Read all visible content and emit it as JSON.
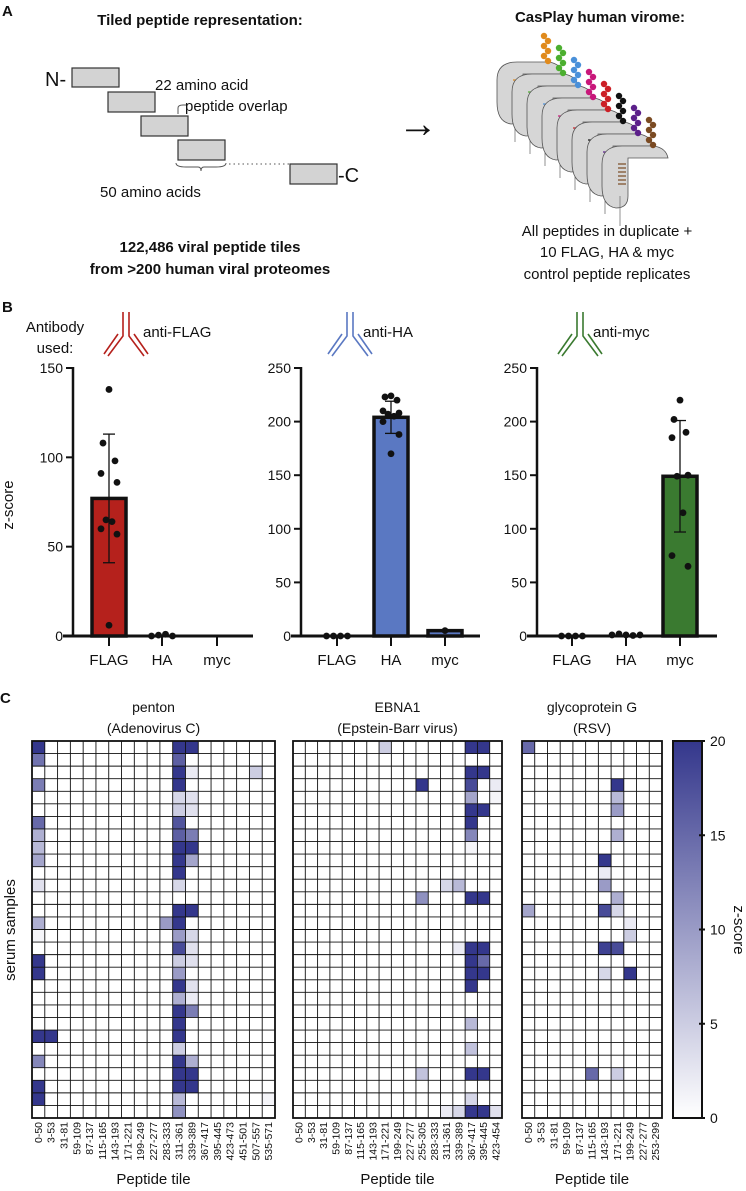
{
  "panel_a": {
    "letter": "A",
    "left_title": "Tiled peptide representation:",
    "n_term": "N-",
    "c_term": "-C",
    "overlap_line1": "22 amino acid",
    "overlap_line2": "peptide overlap",
    "length_label": "50 amino acids",
    "summary_line1": "122,486 viral peptide tiles",
    "summary_line2": "from >200 human viral proteomes",
    "right_title": "CasPlay human virome:",
    "right_line1": "All peptides in duplicate +",
    "right_line2": "10 FLAG, HA & myc",
    "right_line3": "control peptide replicates",
    "arrow": "→",
    "bead_colors": [
      "#e08a1c",
      "#4caf2f",
      "#4a90d9",
      "#c8177a",
      "#cc1f26",
      "#111111",
      "#5b1f8a",
      "#7a4a22"
    ]
  },
  "panel_b": {
    "letter": "B",
    "antibody_label_line1": "Antibody",
    "antibody_label_line2": "used:",
    "ylabel": "z-score"
  },
  "panel_c": {
    "letter": "C",
    "ylabel": "serum samples",
    "xlabel": "Peptide tile",
    "colorbar_label": "z-score"
  },
  "chart_data": [
    {
      "type": "bar",
      "title": "anti-FLAG",
      "color": "#b5211c",
      "categories": [
        "FLAG",
        "HA",
        "myc"
      ],
      "ylabel": "z-score",
      "ylim": [
        0,
        150
      ],
      "yticks": [
        0,
        50,
        100,
        150
      ],
      "means": [
        77,
        0.5,
        null
      ],
      "sd": [
        [
          41,
          113
        ],
        null,
        null
      ],
      "points": [
        [
          138,
          108,
          98,
          91,
          86,
          65,
          64,
          60,
          57,
          6
        ],
        [
          0,
          0.5,
          1,
          0
        ],
        []
      ]
    },
    {
      "type": "bar",
      "title": "anti-HA",
      "color": "#5a78c2",
      "categories": [
        "FLAG",
        "HA",
        "myc"
      ],
      "ylabel": "z-score",
      "ylim": [
        0,
        250
      ],
      "yticks": [
        0,
        50,
        100,
        150,
        200,
        250
      ],
      "means": [
        0.3,
        204,
        5
      ],
      "sd": [
        null,
        [
          189,
          219
        ],
        null
      ],
      "points": [
        [
          0,
          0,
          0,
          0
        ],
        [
          224,
          223,
          220,
          210,
          208,
          207,
          205,
          200,
          188,
          170
        ],
        [
          5
        ]
      ]
    },
    {
      "type": "bar",
      "title": "anti-myc",
      "color": "#3a7a30",
      "categories": [
        "FLAG",
        "HA",
        "myc"
      ],
      "ylabel": "z-score",
      "ylim": [
        0,
        250
      ],
      "yticks": [
        0,
        50,
        100,
        150,
        200,
        250
      ],
      "means": [
        0.3,
        1,
        149
      ],
      "sd": [
        null,
        null,
        [
          97,
          201
        ]
      ],
      "points": [
        [
          0,
          0,
          0,
          0
        ],
        [
          1,
          2,
          1,
          0.5,
          1
        ],
        [
          220,
          202,
          190,
          185,
          150,
          149,
          115,
          75,
          65
        ]
      ]
    },
    {
      "type": "heatmap",
      "title_line1": "penton",
      "title_line2": "(Adenovirus C)",
      "xlabel": "Peptide tile",
      "ylabel": "serum samples",
      "n_samples": 30,
      "tiles": [
        "0-50",
        "3-53",
        "31-81",
        "59-109",
        "87-137",
        "115-165",
        "143-193",
        "171-221",
        "199-249",
        "227-277",
        "283-333",
        "311-361",
        "339-389",
        "367-417",
        "395-445",
        "423-473",
        "451-501",
        "507-557",
        "535-571"
      ],
      "nonzero_cells_sample_tile_z": [
        [
          0,
          0,
          20
        ],
        [
          0,
          11,
          20
        ],
        [
          0,
          12,
          20
        ],
        [
          1,
          0,
          14
        ],
        [
          1,
          11,
          16
        ],
        [
          2,
          11,
          20
        ],
        [
          2,
          12,
          2
        ],
        [
          2,
          17,
          5
        ],
        [
          3,
          0,
          13
        ],
        [
          3,
          11,
          20
        ],
        [
          4,
          11,
          4
        ],
        [
          4,
          12,
          3
        ],
        [
          5,
          11,
          5
        ],
        [
          5,
          12,
          3
        ],
        [
          6,
          0,
          15
        ],
        [
          6,
          11,
          17
        ],
        [
          7,
          0,
          8
        ],
        [
          7,
          11,
          16
        ],
        [
          7,
          12,
          13
        ],
        [
          8,
          0,
          7
        ],
        [
          8,
          11,
          20
        ],
        [
          8,
          12,
          20
        ],
        [
          9,
          0,
          9
        ],
        [
          9,
          11,
          20
        ],
        [
          9,
          12,
          9
        ],
        [
          10,
          11,
          20
        ],
        [
          11,
          0,
          3
        ],
        [
          11,
          11,
          4
        ],
        [
          13,
          11,
          20
        ],
        [
          13,
          12,
          20
        ],
        [
          14,
          0,
          8
        ],
        [
          14,
          10,
          10
        ],
        [
          14,
          11,
          20
        ],
        [
          15,
          0,
          1
        ],
        [
          15,
          11,
          10
        ],
        [
          15,
          12,
          4
        ],
        [
          16,
          11,
          18
        ],
        [
          16,
          12,
          3
        ],
        [
          17,
          0,
          20
        ],
        [
          17,
          11,
          5
        ],
        [
          17,
          12,
          3
        ],
        [
          18,
          0,
          20
        ],
        [
          18,
          11,
          10
        ],
        [
          19,
          11,
          20
        ],
        [
          19,
          12,
          3
        ],
        [
          20,
          11,
          8
        ],
        [
          20,
          12,
          2
        ],
        [
          21,
          11,
          20
        ],
        [
          21,
          12,
          13
        ],
        [
          22,
          11,
          20
        ],
        [
          23,
          0,
          20
        ],
        [
          23,
          1,
          20
        ],
        [
          23,
          11,
          20
        ],
        [
          24,
          11,
          5
        ],
        [
          25,
          0,
          12
        ],
        [
          25,
          11,
          20
        ],
        [
          25,
          12,
          8
        ],
        [
          26,
          11,
          20
        ],
        [
          26,
          12,
          20
        ],
        [
          27,
          0,
          20
        ],
        [
          27,
          11,
          20
        ],
        [
          27,
          12,
          20
        ],
        [
          28,
          0,
          20
        ],
        [
          28,
          11,
          7
        ],
        [
          28,
          18,
          1
        ],
        [
          29,
          11,
          11
        ]
      ]
    },
    {
      "type": "heatmap",
      "title_line1": "EBNA1",
      "title_line2": "(Epstein-Barr virus)",
      "xlabel": "Peptide tile",
      "n_samples": 30,
      "tiles": [
        "0-50",
        "3-53",
        "31-81",
        "59-109",
        "87-137",
        "115-165",
        "143-193",
        "171-221",
        "199-249",
        "227-277",
        "255-305",
        "283-333",
        "311-361",
        "339-389",
        "367-417",
        "395-445",
        "423-454"
      ],
      "nonzero_cells_sample_tile_z": [
        [
          0,
          7,
          5
        ],
        [
          0,
          14,
          20
        ],
        [
          0,
          15,
          20
        ],
        [
          2,
          14,
          20
        ],
        [
          2,
          15,
          20
        ],
        [
          3,
          10,
          20
        ],
        [
          3,
          14,
          18
        ],
        [
          3,
          16,
          2
        ],
        [
          4,
          14,
          9
        ],
        [
          4,
          16,
          1
        ],
        [
          5,
          14,
          20
        ],
        [
          5,
          15,
          20
        ],
        [
          6,
          14,
          20
        ],
        [
          7,
          14,
          12
        ],
        [
          8,
          14,
          1
        ],
        [
          11,
          12,
          4
        ],
        [
          11,
          13,
          7
        ],
        [
          12,
          10,
          11
        ],
        [
          12,
          14,
          20
        ],
        [
          12,
          15,
          20
        ],
        [
          16,
          13,
          2
        ],
        [
          16,
          14,
          20
        ],
        [
          16,
          15,
          20
        ],
        [
          17,
          14,
          20
        ],
        [
          17,
          15,
          15
        ],
        [
          18,
          14,
          20
        ],
        [
          18,
          15,
          20
        ],
        [
          19,
          14,
          20
        ],
        [
          22,
          14,
          7
        ],
        [
          24,
          14,
          6
        ],
        [
          26,
          10,
          6
        ],
        [
          26,
          14,
          20
        ],
        [
          26,
          15,
          20
        ],
        [
          28,
          14,
          4
        ],
        [
          29,
          12,
          2
        ],
        [
          29,
          13,
          4
        ],
        [
          29,
          14,
          20
        ],
        [
          29,
          15,
          20
        ],
        [
          29,
          16,
          3
        ]
      ]
    },
    {
      "type": "heatmap",
      "title_line1": "glycoprotein G",
      "title_line2": "(RSV)",
      "xlabel": "Peptide tile",
      "n_samples": 30,
      "tiles": [
        "0-50",
        "3-53",
        "31-81",
        "59-109",
        "87-137",
        "115-165",
        "143-193",
        "171-221",
        "199-249",
        "227-277",
        "253-299"
      ],
      "nonzero_cells_sample_tile_z": [
        [
          0,
          0,
          15
        ],
        [
          3,
          7,
          20
        ],
        [
          4,
          7,
          7
        ],
        [
          5,
          7,
          10
        ],
        [
          7,
          7,
          8
        ],
        [
          9,
          6,
          20
        ],
        [
          10,
          6,
          2
        ],
        [
          11,
          6,
          10
        ],
        [
          12,
          7,
          8
        ],
        [
          13,
          0,
          9
        ],
        [
          13,
          6,
          18
        ],
        [
          13,
          7,
          4
        ],
        [
          14,
          8,
          2
        ],
        [
          15,
          8,
          5
        ],
        [
          16,
          6,
          19
        ],
        [
          16,
          7,
          18
        ],
        [
          18,
          6,
          4
        ],
        [
          18,
          8,
          20
        ],
        [
          26,
          5,
          15
        ],
        [
          26,
          7,
          5
        ]
      ]
    },
    {
      "type": "colorbar",
      "label": "z-score",
      "range": [
        0,
        20
      ],
      "ticks": [
        0,
        5,
        10,
        15,
        20
      ],
      "color_low": "#ffffff",
      "color_high": "#34378c"
    }
  ]
}
